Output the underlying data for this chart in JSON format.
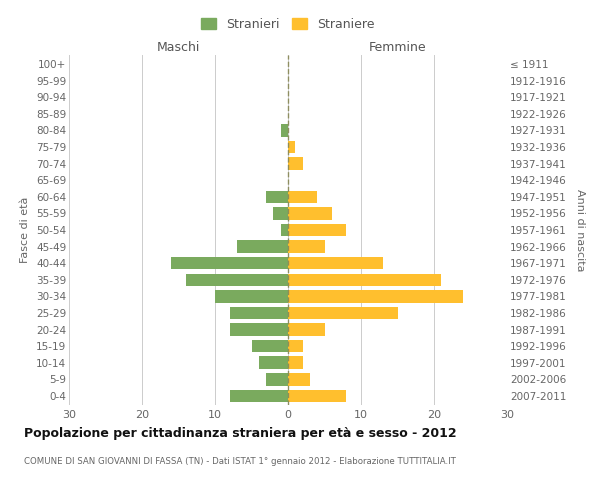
{
  "age_groups": [
    "0-4",
    "5-9",
    "10-14",
    "15-19",
    "20-24",
    "25-29",
    "30-34",
    "35-39",
    "40-44",
    "45-49",
    "50-54",
    "55-59",
    "60-64",
    "65-69",
    "70-74",
    "75-79",
    "80-84",
    "85-89",
    "90-94",
    "95-99",
    "100+"
  ],
  "birth_years": [
    "2007-2011",
    "2002-2006",
    "1997-2001",
    "1992-1996",
    "1987-1991",
    "1982-1986",
    "1977-1981",
    "1972-1976",
    "1967-1971",
    "1962-1966",
    "1957-1961",
    "1952-1956",
    "1947-1951",
    "1942-1946",
    "1937-1941",
    "1932-1936",
    "1927-1931",
    "1922-1926",
    "1917-1921",
    "1912-1916",
    "≤ 1911"
  ],
  "males": [
    8,
    3,
    4,
    5,
    8,
    8,
    10,
    14,
    16,
    7,
    1,
    2,
    3,
    0,
    0,
    0,
    1,
    0,
    0,
    0,
    0
  ],
  "females": [
    8,
    3,
    2,
    2,
    5,
    15,
    24,
    21,
    13,
    5,
    8,
    6,
    4,
    0,
    2,
    1,
    0,
    0,
    0,
    0,
    0
  ],
  "male_color": "#7aaa5e",
  "female_color": "#ffbf2e",
  "grid_color": "#cccccc",
  "dashed_line_color": "#888855",
  "title": "Popolazione per cittadinanza straniera per età e sesso - 2012",
  "subtitle": "COMUNE DI SAN GIOVANNI DI FASSA (TN) - Dati ISTAT 1° gennaio 2012 - Elaborazione TUTTITALIA.IT",
  "ylabel_left": "Fasce di età",
  "ylabel_right": "Anni di nascita",
  "xlabel_maschi": "Maschi",
  "xlabel_femmine": "Femmine",
  "legend_males": "Stranieri",
  "legend_females": "Straniere",
  "xlim": 30,
  "background_color": "#ffffff",
  "bar_height": 0.75
}
